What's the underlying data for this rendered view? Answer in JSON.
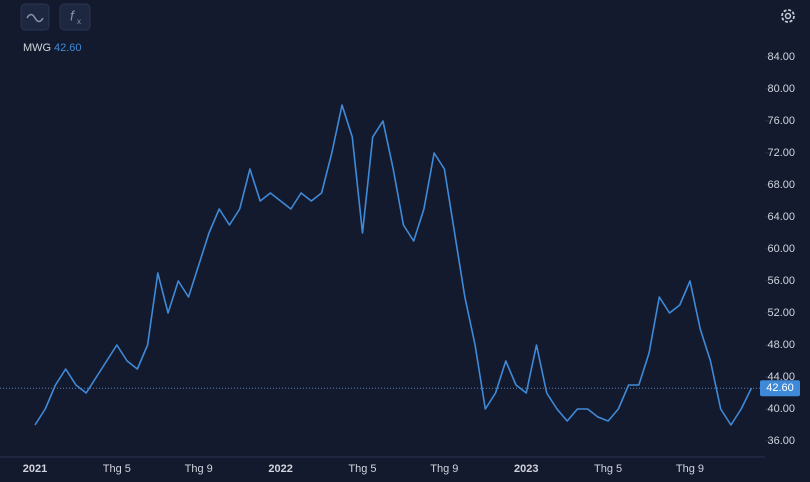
{
  "chart_data": {
    "type": "line",
    "ticker": "MWG",
    "last_price": 42.6,
    "last_price_label": "42.60",
    "categories": [
      "2021",
      null,
      null,
      null,
      null,
      null,
      null,
      null,
      "Thg 5",
      null,
      null,
      null,
      null,
      null,
      null,
      null,
      "Thg 9",
      null,
      null,
      null,
      null,
      null,
      null,
      null,
      "2022",
      null,
      null,
      null,
      null,
      null,
      null,
      null,
      "Thg 5",
      null,
      null,
      null,
      null,
      null,
      null,
      null,
      "Thg 9",
      null,
      null,
      null,
      null,
      null,
      null,
      null,
      "2023",
      null,
      null,
      null,
      null,
      null,
      null,
      null,
      "Thg 5",
      null,
      null,
      null,
      null,
      null,
      null,
      null,
      "Thg 9",
      null,
      null,
      null,
      null,
      null,
      null
    ],
    "series": [
      {
        "name": "MWG",
        "color": "#3f8ad8",
        "values": [
          38,
          40,
          43,
          45,
          43,
          42,
          44,
          46,
          48,
          46,
          45,
          48,
          57,
          52,
          56,
          54,
          58,
          62,
          65,
          63,
          65,
          70,
          66,
          67,
          66,
          65,
          67,
          66,
          67,
          72,
          78,
          74,
          62,
          74,
          76,
          70,
          63,
          61,
          65,
          72,
          70,
          62,
          54,
          48,
          40,
          42,
          46,
          43,
          42,
          48,
          42,
          40,
          38.5,
          40,
          40,
          39,
          38.5,
          40,
          43,
          43,
          47,
          54,
          52,
          53,
          56,
          50,
          46,
          40,
          38,
          40,
          42.6
        ]
      }
    ],
    "ylim": [
      34,
      86
    ],
    "yticks": [
      {
        "value": 36,
        "label": "36.00"
      },
      {
        "value": 40,
        "label": "40.00"
      },
      {
        "value": 44,
        "label": "44.00"
      },
      {
        "value": 48,
        "label": "48.00"
      },
      {
        "value": 52,
        "label": "52.00"
      },
      {
        "value": 56,
        "label": "56.00"
      },
      {
        "value": 60,
        "label": "60.00"
      },
      {
        "value": 64,
        "label": "64.00"
      },
      {
        "value": 68,
        "label": "68.00"
      },
      {
        "value": 72,
        "label": "72.00"
      },
      {
        "value": 76,
        "label": "76.00"
      },
      {
        "value": 80,
        "label": "80.00"
      },
      {
        "value": 84,
        "label": "84.00"
      }
    ]
  }
}
